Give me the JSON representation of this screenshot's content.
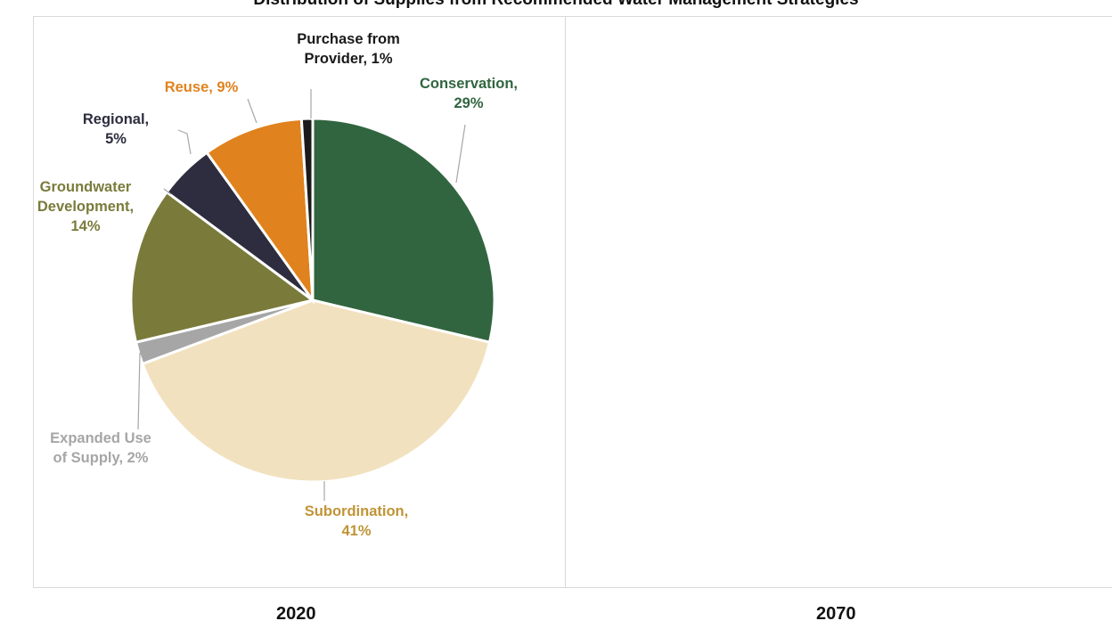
{
  "page": {
    "title": "Distribution of Supplies from Recommended Water Management Strategies",
    "year_left": "2020",
    "year_right": "2070"
  },
  "chart_data": [
    {
      "type": "pie",
      "title": "2020",
      "slices": [
        {
          "name": "Conservation",
          "value": 29,
          "color": "#31653f",
          "label": [
            "Conservation,",
            "29%"
          ]
        },
        {
          "name": "Subordination",
          "value": 41,
          "color": "#f2e1bf",
          "label": [
            "Subordination,",
            "41%"
          ]
        },
        {
          "name": "Expanded Use of Supply",
          "value": 2,
          "color": "#a6a6a6",
          "label": [
            "Expanded Use",
            "of Supply, 2%"
          ]
        },
        {
          "name": "Groundwater Development",
          "value": 14,
          "color": "#7a7b3b",
          "label": [
            "Groundwater",
            "Development,",
            "14%"
          ]
        },
        {
          "name": "Regional",
          "value": 5,
          "color": "#2d2d3f",
          "label": [
            "Regional,",
            "5%"
          ]
        },
        {
          "name": "Reuse",
          "value": 9,
          "color": "#e0821d",
          "label": [
            "Reuse, 9%"
          ]
        },
        {
          "name": "Purchase from Provider",
          "value": 1,
          "color": "#1a1a1a",
          "label": [
            "Purchase from",
            "Provider, 1%"
          ]
        }
      ],
      "label_colors": {
        "Conservation": "#31653f",
        "Subordination": "#c09436",
        "Expanded Use of Supply": "#a6a6a6",
        "Groundwater Development": "#7a7b3b",
        "Regional": "#2d2d3f",
        "Reuse": "#e0821d",
        "Purchase from Provider": "#1a1a1a"
      }
    },
    {
      "type": "pie",
      "title": "2070",
      "slices": []
    }
  ]
}
